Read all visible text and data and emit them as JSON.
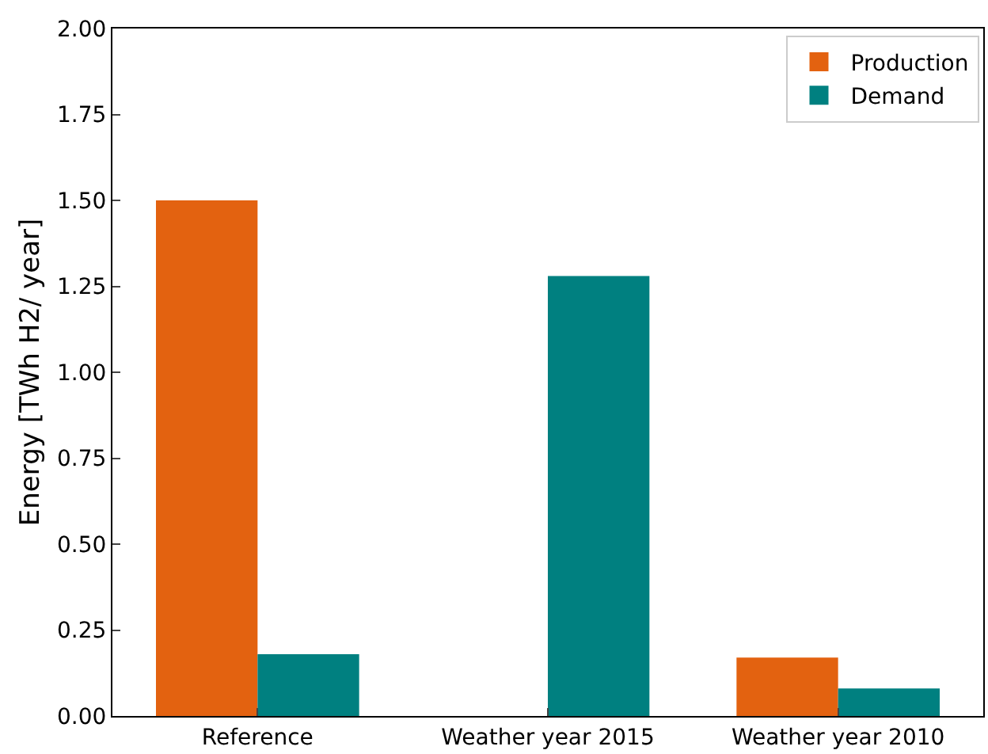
{
  "chart_data": {
    "type": "bar",
    "ylabel": "Energy [TWh H2/ year]",
    "categories": [
      "Reference",
      "Weather year 2015",
      "Weather year 2010"
    ],
    "series": [
      {
        "name": "Production",
        "color": "#e36210",
        "values": [
          1.5,
          0,
          0.17
        ]
      },
      {
        "name": "Demand",
        "color": "#008080",
        "values": [
          0.18,
          1.28,
          0.08
        ]
      }
    ],
    "ylim": [
      0,
      2
    ],
    "yticks": [
      {
        "value": 0,
        "label": "0.00"
      },
      {
        "value": 0.25,
        "label": "0.25"
      },
      {
        "value": 0.5,
        "label": "0.50"
      },
      {
        "value": 0.75,
        "label": "0.75"
      },
      {
        "value": 1,
        "label": "1.00"
      },
      {
        "value": 1.25,
        "label": "1.25"
      },
      {
        "value": 1.5,
        "label": "1.50"
      },
      {
        "value": 1.75,
        "label": "1.75"
      },
      {
        "value": 2,
        "label": "2.00"
      }
    ],
    "legend": "top right"
  }
}
